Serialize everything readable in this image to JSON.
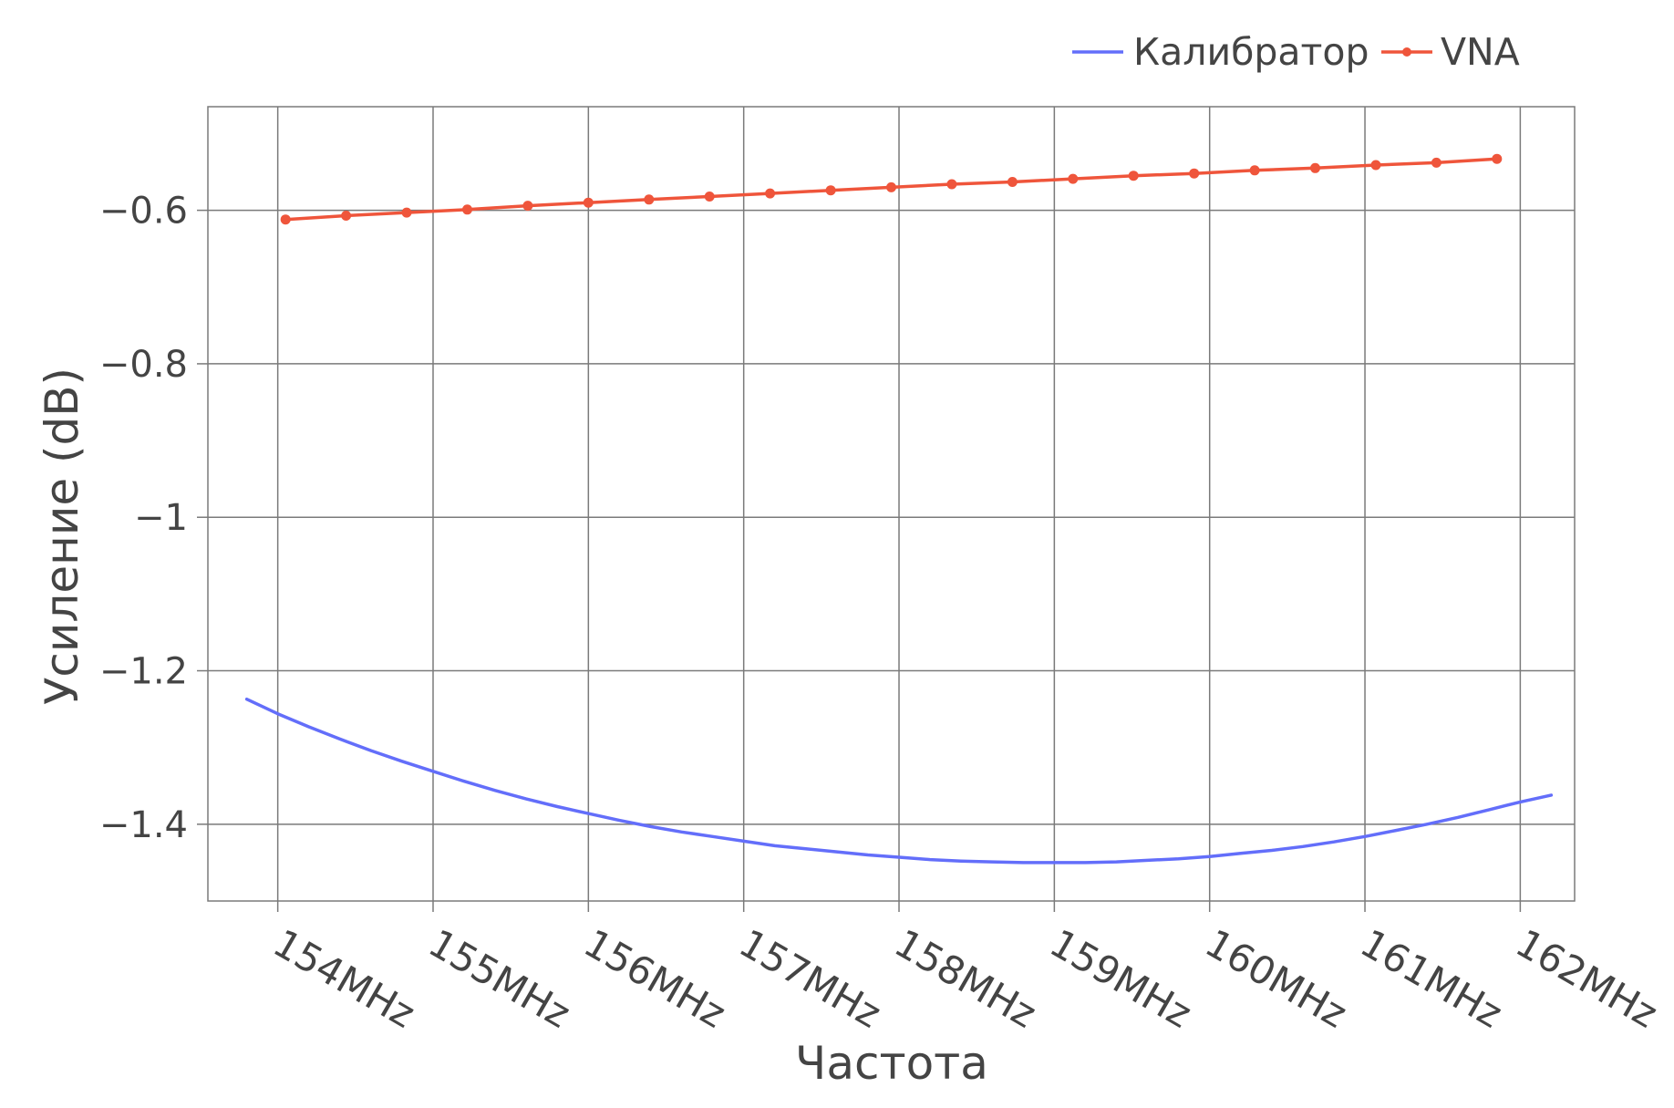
{
  "chart_data": {
    "type": "line",
    "xlabel": "Частота",
    "ylabel": "Усиление (dB)",
    "x_unit": "MHz",
    "xlim": [
      153.55,
      162.35
    ],
    "ylim": [
      -1.5,
      -0.465
    ],
    "x_ticks": [
      154,
      155,
      156,
      157,
      158,
      159,
      160,
      161,
      162
    ],
    "x_tick_labels": [
      "154MHz",
      "155MHz",
      "156MHz",
      "157MHz",
      "158MHz",
      "159MHz",
      "160MHz",
      "161MHz",
      "162MHz"
    ],
    "y_ticks": [
      -0.6,
      -0.8,
      -1,
      -1.2,
      -1.4
    ],
    "y_tick_labels": [
      "−0.6",
      "−0.8",
      "−1",
      "−1.2",
      "−1.4"
    ],
    "grid": true,
    "legend_placement": "top-right",
    "series": [
      {
        "name": "Калибратор",
        "color": "#636efa",
        "markers": false,
        "x": [
          153.8,
          154.0,
          154.2,
          154.4,
          154.6,
          154.8,
          155.0,
          155.2,
          155.4,
          155.6,
          155.8,
          156.0,
          156.2,
          156.4,
          156.6,
          156.8,
          157.0,
          157.2,
          157.4,
          157.6,
          157.8,
          158.0,
          158.2,
          158.4,
          158.6,
          158.8,
          159.0,
          159.2,
          159.4,
          159.6,
          159.8,
          160.0,
          160.2,
          160.4,
          160.6,
          160.8,
          161.0,
          161.2,
          161.4,
          161.6,
          161.8,
          162.0,
          162.2
        ],
        "y": [
          -1.237,
          -1.256,
          -1.273,
          -1.289,
          -1.304,
          -1.318,
          -1.331,
          -1.344,
          -1.356,
          -1.367,
          -1.377,
          -1.386,
          -1.395,
          -1.403,
          -1.41,
          -1.416,
          -1.422,
          -1.428,
          -1.432,
          -1.436,
          -1.44,
          -1.443,
          -1.446,
          -1.448,
          -1.449,
          -1.45,
          -1.45,
          -1.45,
          -1.449,
          -1.447,
          -1.445,
          -1.442,
          -1.438,
          -1.434,
          -1.429,
          -1.423,
          -1.416,
          -1.408,
          -1.4,
          -1.391,
          -1.381,
          -1.371,
          -1.362
        ]
      },
      {
        "name": "VNA",
        "color": "#ef553b",
        "markers": true,
        "x": [
          154.05,
          154.44,
          154.83,
          155.22,
          155.61,
          156.0,
          156.39,
          156.78,
          157.17,
          157.56,
          157.95,
          158.34,
          158.73,
          159.12,
          159.51,
          159.9,
          160.29,
          160.68,
          161.07,
          161.46,
          161.85
        ],
        "y": [
          -0.612,
          -0.607,
          -0.603,
          -0.599,
          -0.594,
          -0.59,
          -0.586,
          -0.582,
          -0.578,
          -0.574,
          -0.57,
          -0.566,
          -0.563,
          -0.559,
          -0.555,
          -0.552,
          -0.548,
          -0.545,
          -0.541,
          -0.538,
          -0.533
        ]
      }
    ]
  }
}
